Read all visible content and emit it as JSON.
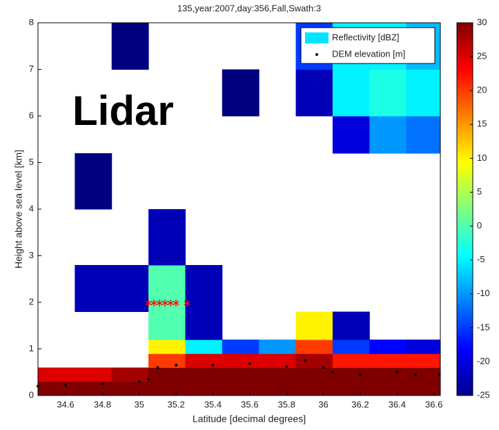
{
  "chart_data": {
    "type": "heatmap",
    "title": "135,year:2007,day:356,Fall,Swath:3",
    "annotation": "Lidar",
    "xlabel": "Latitude [decimal degrees]",
    "ylabel": "Height above sea level [km]",
    "xlim": [
      34.45,
      36.635
    ],
    "xticks": [
      34.6,
      34.8,
      35,
      35.2,
      35.4,
      35.6,
      35.8,
      36,
      36.2,
      36.4,
      36.6
    ],
    "ylim": [
      0,
      8
    ],
    "yticks": [
      0,
      1,
      2,
      3,
      4,
      5,
      6,
      7,
      8
    ],
    "clim": [
      -25,
      30
    ],
    "cticks": [
      -25,
      -20,
      -15,
      -10,
      -5,
      0,
      5,
      10,
      15,
      20,
      25,
      30
    ],
    "colormap": "jet",
    "x_edges": [
      34.45,
      34.65,
      34.85,
      35.05,
      35.25,
      35.45,
      35.65,
      35.85,
      36.05,
      36.25,
      36.45,
      36.635
    ],
    "y_edges": [
      0,
      0.3,
      0.6,
      0.9,
      1.2,
      1.8,
      2.8,
      4,
      5.2,
      6,
      7,
      8
    ],
    "z": [
      [
        30,
        30,
        30,
        30,
        30,
        30,
        30,
        30,
        30,
        30,
        30
      ],
      [
        25,
        25,
        28,
        30,
        30,
        30,
        30,
        30,
        30,
        30,
        30
      ],
      [
        null,
        null,
        null,
        20,
        25,
        25,
        25,
        28,
        22,
        22,
        22
      ],
      [
        null,
        null,
        null,
        10,
        -5,
        -15,
        -10,
        20,
        -15,
        -18,
        -20
      ],
      [
        null,
        null,
        null,
        0,
        -22,
        null,
        null,
        10,
        -22,
        null,
        null
      ],
      [
        null,
        -22,
        -22,
        0,
        -22,
        null,
        null,
        null,
        null,
        null,
        null
      ],
      [
        null,
        null,
        null,
        -22,
        null,
        null,
        null,
        null,
        null,
        null,
        null
      ],
      [
        null,
        -25,
        null,
        null,
        null,
        null,
        null,
        null,
        null,
        null,
        null
      ],
      [
        null,
        null,
        null,
        null,
        null,
        null,
        null,
        null,
        -20,
        -10,
        -12
      ],
      [
        null,
        null,
        null,
        null,
        null,
        -25,
        null,
        -22,
        -5,
        -3,
        -5
      ],
      [
        null,
        null,
        -25,
        null,
        null,
        null,
        null,
        -15,
        -5,
        -5,
        -8
      ]
    ],
    "legend": [
      {
        "name": "Reflectivity [dBZ]",
        "color": "#00e5ff"
      },
      {
        "name": "DEM elevation [m]",
        "color": "#000000"
      }
    ],
    "series": [
      {
        "name": "DEM elevation [m]",
        "color": "#000000",
        "x": [
          34.45,
          34.6,
          34.8,
          35.0,
          35.05,
          35.1,
          35.2,
          35.4,
          35.6,
          35.8,
          35.9,
          36.0,
          36.05,
          36.2,
          36.4,
          36.5,
          36.63
        ],
        "values": [
          0.2,
          0.22,
          0.25,
          0.3,
          0.35,
          0.6,
          0.65,
          0.65,
          0.68,
          0.62,
          0.75,
          0.6,
          0.5,
          0.45,
          0.5,
          0.45,
          0.45
        ]
      },
      {
        "color": "#ff0000",
        "x": [
          35.05,
          35.08,
          35.11,
          35.14,
          35.17,
          35.2,
          35.26
        ],
        "values": [
          2,
          2,
          2,
          2,
          2,
          2,
          2
        ]
      }
    ]
  }
}
